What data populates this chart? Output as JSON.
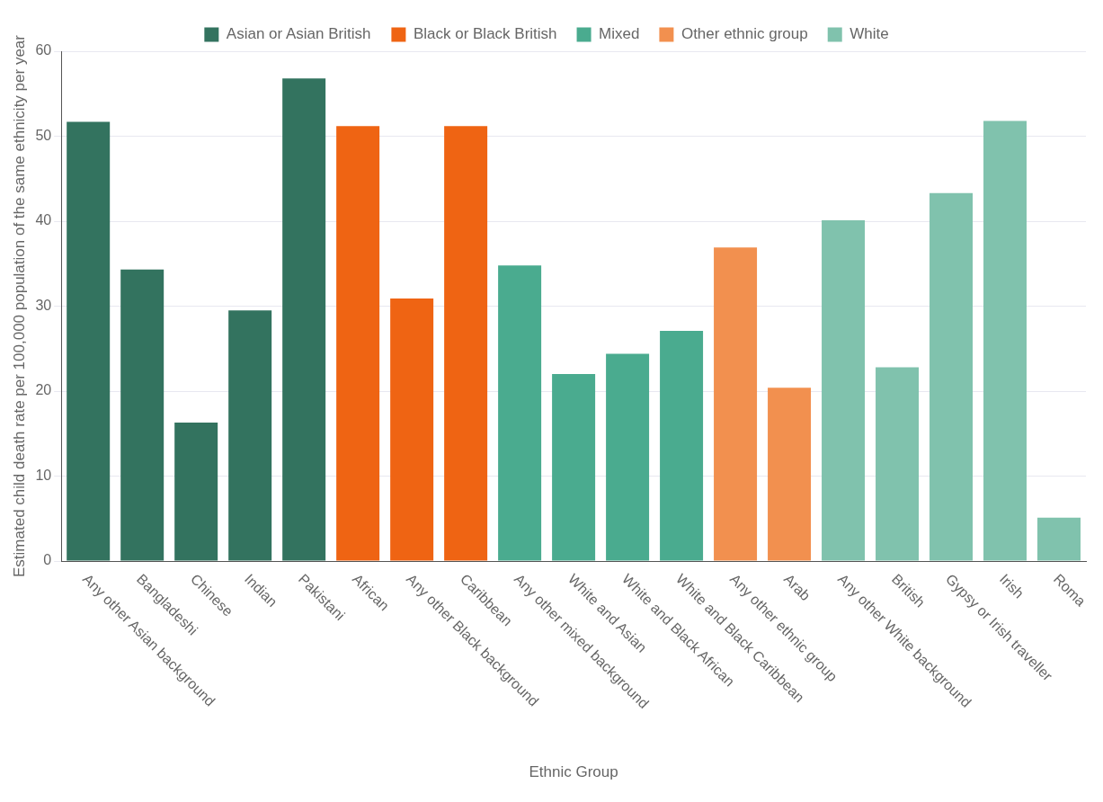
{
  "chart_data": {
    "type": "bar",
    "xlabel": "Ethnic Group",
    "ylabel": "Estimated child death rate per 100,000 population of the same ethnicity per year",
    "categories": [
      "Any other Asian background",
      "Bangladeshi",
      "Chinese",
      "Indian",
      "Pakistani",
      "African",
      "Any other Black background",
      "Caribbean",
      "Any other mixed background",
      "White and Asian",
      "White and Black African",
      "White and Black Caribbean",
      "Any other ethnic group",
      "Arab",
      "Any other White background",
      "British",
      "Gypsy or Irish traveller",
      "Irish",
      "Roma"
    ],
    "series": [
      {
        "name": "Asian or Asian British",
        "color": "#33735f",
        "values": [
          51.7,
          34.3,
          16.3,
          29.5,
          56.8,
          null,
          null,
          null,
          null,
          null,
          null,
          null,
          null,
          null,
          null,
          null,
          null,
          null,
          null
        ]
      },
      {
        "name": "Black or Black British",
        "color": "#ef6413",
        "values": [
          null,
          null,
          null,
          null,
          null,
          51.2,
          30.9,
          51.2,
          null,
          null,
          null,
          null,
          null,
          null,
          null,
          null,
          null,
          null,
          null
        ]
      },
      {
        "name": "Mixed",
        "color": "#4aab8f",
        "values": [
          null,
          null,
          null,
          null,
          null,
          null,
          null,
          null,
          34.8,
          22.0,
          24.4,
          27.1,
          null,
          null,
          null,
          null,
          null,
          null,
          null
        ]
      },
      {
        "name": "Other ethnic group",
        "color": "#f2904f",
        "values": [
          null,
          null,
          null,
          null,
          null,
          null,
          null,
          null,
          null,
          null,
          null,
          null,
          36.9,
          20.4,
          null,
          null,
          null,
          null,
          null
        ]
      },
      {
        "name": "White",
        "color": "#80c2ad",
        "values": [
          null,
          null,
          null,
          null,
          null,
          null,
          null,
          null,
          null,
          null,
          null,
          null,
          null,
          null,
          40.1,
          22.8,
          43.3,
          51.8,
          5.1
        ]
      }
    ],
    "ylim": [
      0,
      60
    ],
    "yticks": [
      0,
      10,
      20,
      30,
      40,
      50,
      60
    ],
    "grid": "y",
    "legend": "top"
  }
}
